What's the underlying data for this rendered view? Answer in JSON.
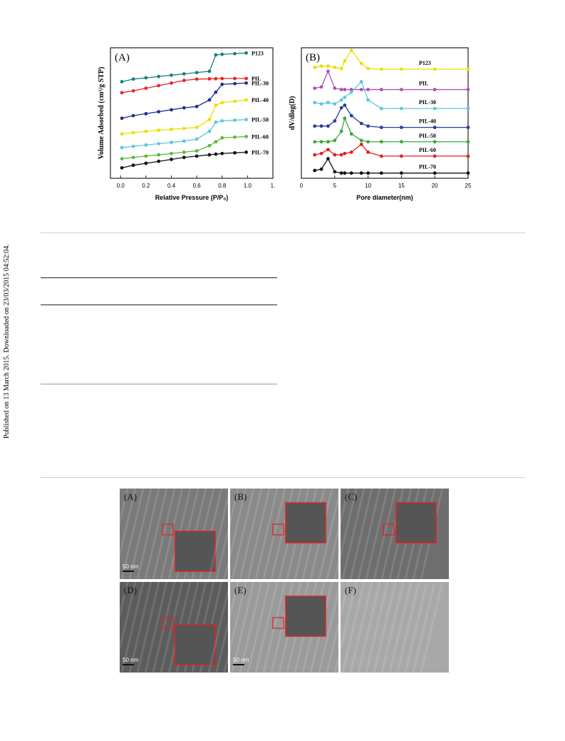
{
  "side_note": "Published on 13 March 2015. Downloaded on 23/03/2015 04:52:04.",
  "chart_data": [
    {
      "type": "line",
      "panel": "(A)",
      "x_label": "Relative Pressure (P/P₀)",
      "y_label": "Volume Adsorbed (cm³/g STP)",
      "x": [
        0.01,
        0.1,
        0.2,
        0.3,
        0.4,
        0.5,
        0.6,
        0.7,
        0.75,
        0.8,
        0.9,
        0.99
      ],
      "xlim": [
        -0.08,
        1.2
      ],
      "ylim": [
        0,
        100
      ],
      "xticks": [
        {
          "value": 0,
          "label": "0.0"
        },
        0.2,
        0.4,
        0.6,
        0.8,
        {
          "value": 1,
          "label": "1.0"
        },
        {
          "value": 1.2,
          "label": "1."
        }
      ],
      "series": [
        {
          "name": "P123",
          "color": "#16807c",
          "values": [
            74,
            76,
            77,
            78,
            79,
            80,
            81,
            82,
            94.5,
            95,
            95.5,
            96
          ]
        },
        {
          "name": "PIL",
          "color": "#e8262a",
          "values": [
            65.6,
            67,
            69,
            71,
            73,
            75,
            76,
            76.2,
            76.3,
            76.4,
            76.5,
            76.5
          ]
        },
        {
          "name": "PIL-30",
          "color": "#1f2f8c",
          "values": [
            46,
            48,
            49.5,
            51,
            52.5,
            54,
            55,
            60,
            66,
            72,
            72.5,
            73
          ]
        },
        {
          "name": "PIL-40",
          "color": "#e8e000",
          "values": [
            34,
            35,
            36,
            36.8,
            37.5,
            38.2,
            39,
            45,
            56,
            58,
            59,
            60
          ]
        },
        {
          "name": "PIL-50",
          "color": "#5bc8dc",
          "values": [
            23.5,
            24.5,
            25.5,
            26.5,
            27.5,
            28.5,
            30,
            36,
            43,
            44,
            44.5,
            45
          ]
        },
        {
          "name": "PIL-60",
          "color": "#5cb83a",
          "values": [
            15,
            16,
            17,
            18,
            19,
            20,
            21,
            25,
            28,
            31,
            31.5,
            32
          ]
        },
        {
          "name": "PIL-70",
          "color": "#111111",
          "values": [
            8,
            10,
            11.5,
            13,
            14.5,
            16,
            17,
            18,
            18.5,
            19,
            19.5,
            20
          ]
        }
      ]
    },
    {
      "type": "line",
      "panel": "(B)",
      "x_label": "Pore diameter(nm)",
      "y_label": "dV/dlog(D)",
      "x": [
        2,
        3,
        4,
        5,
        6,
        6.5,
        7.5,
        9,
        10,
        12,
        15,
        20,
        25
      ],
      "xlim": [
        0,
        25
      ],
      "ylim": [
        0,
        100
      ],
      "xticks": [
        0,
        5,
        10,
        15,
        20,
        25
      ],
      "series": [
        {
          "name": "P123",
          "color": "#e8e000",
          "values": [
            85,
            86,
            86,
            85,
            84,
            90,
            98,
            88,
            84,
            83.6,
            83.6,
            83.6,
            83.6
          ]
        },
        {
          "name": "PIL",
          "color": "#b050b0",
          "values": [
            69,
            70,
            82,
            69,
            68,
            68,
            68,
            68,
            68,
            68,
            68,
            68,
            68
          ]
        },
        {
          "name": "PIL-30",
          "color": "#5bc8dc",
          "values": [
            58,
            57,
            58,
            57,
            60,
            62,
            66,
            74,
            60,
            53.5,
            53.5,
            53.5,
            53.5
          ]
        },
        {
          "name": "PIL-40",
          "color": "#2b3e9a",
          "values": [
            40,
            40,
            40,
            44,
            54,
            56,
            48,
            42,
            40,
            39,
            39,
            39,
            39
          ]
        },
        {
          "name": "PIL-50",
          "color": "#3aa83a",
          "values": [
            28,
            28,
            28,
            29,
            36,
            46,
            34,
            29,
            28,
            28,
            28,
            28,
            28
          ]
        },
        {
          "name": "PIL-60",
          "color": "#e02020",
          "values": [
            18,
            19,
            22,
            18,
            18,
            19,
            20,
            26,
            20,
            17,
            17,
            17,
            17
          ]
        },
        {
          "name": "PIL-70",
          "color": "#111111",
          "values": [
            6,
            7,
            15,
            5,
            4,
            4,
            4,
            4,
            4,
            4,
            4,
            4,
            4
          ]
        }
      ]
    }
  ],
  "figure2": {
    "panels": [
      {
        "label": "(A)",
        "scale": "50 nm"
      },
      {
        "label": "(B)"
      },
      {
        "label": "(C)"
      },
      {
        "label": "(D)",
        "scale": "50 nm"
      },
      {
        "label": "(E)",
        "scale": "50 nm"
      },
      {
        "label": "(F)"
      }
    ]
  }
}
